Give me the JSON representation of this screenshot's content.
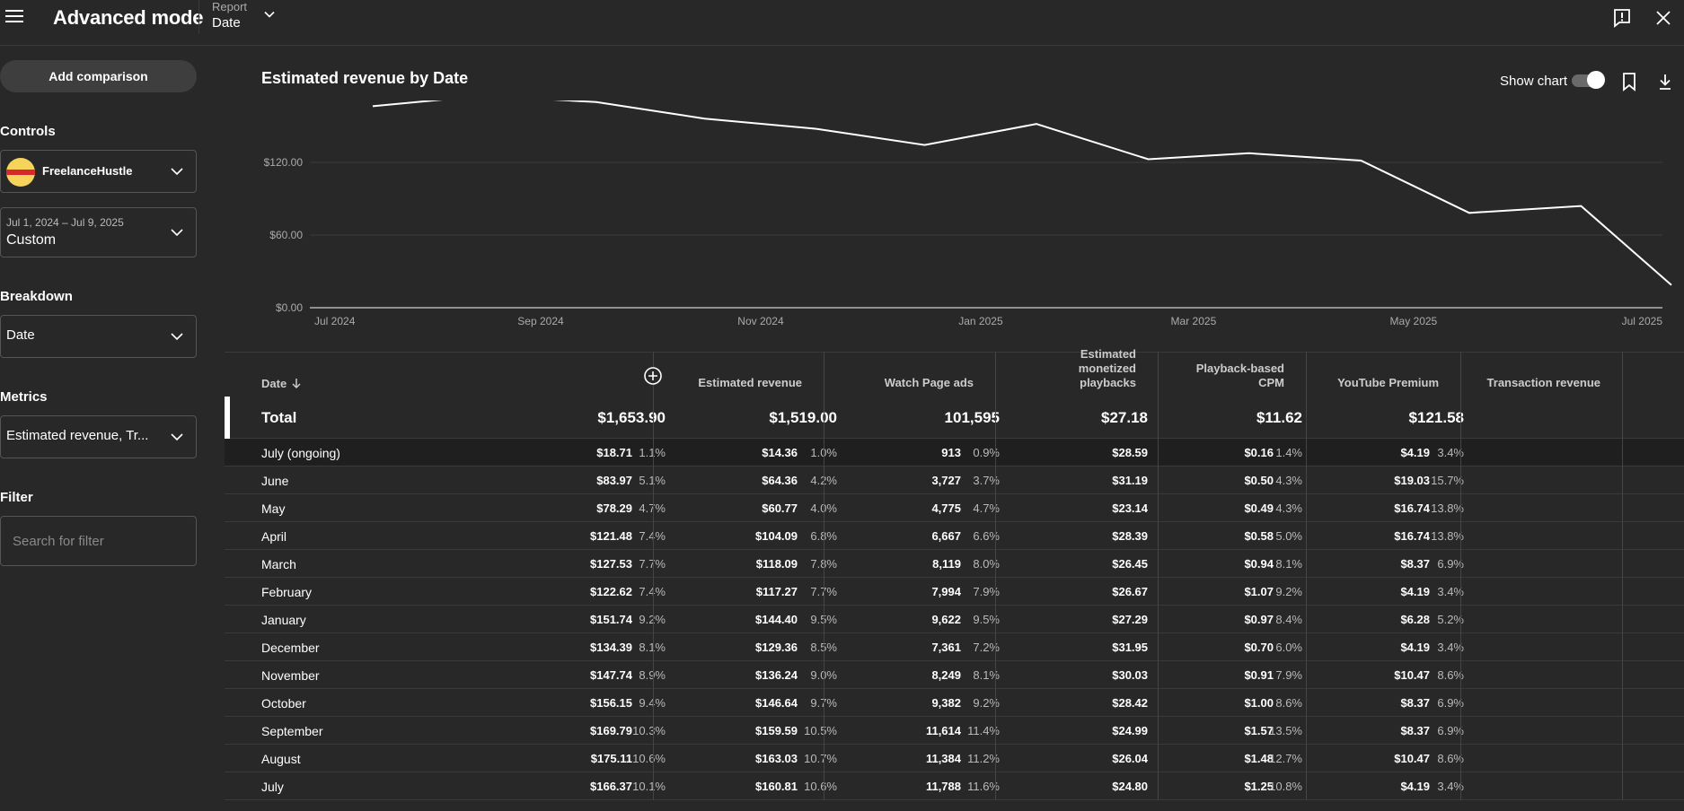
{
  "header": {
    "title": "Advanced mode",
    "report_label": "Report",
    "report_value": "Date"
  },
  "sidebar": {
    "add_comparison": "Add comparison",
    "controls_heading": "Controls",
    "channel_name": "FreelanceHustle",
    "date_range": "Jul 1, 2024 – Jul 9, 2025",
    "date_range_mode": "Custom",
    "breakdown_heading": "Breakdown",
    "breakdown_value": "Date",
    "metrics_heading": "Metrics",
    "metrics_value": "Estimated revenue, Tr...",
    "filter_heading": "Filter",
    "filter_placeholder": "Search for filter"
  },
  "chart": {
    "title": "Estimated revenue by Date",
    "show_chart_label": "Show chart",
    "show_chart_on": true
  },
  "chart_data": {
    "type": "line",
    "title": "Estimated revenue by Date",
    "x": [
      "2024-07-01",
      "2024-08-01",
      "2024-09-01",
      "2024-10-01",
      "2024-11-01",
      "2024-12-01",
      "2025-01-01",
      "2025-02-01",
      "2025-03-01",
      "2025-04-01",
      "2025-05-01",
      "2025-06-01",
      "2025-07-09"
    ],
    "series": [
      {
        "values": [
          166.37,
          175.11,
          169.79,
          156.15,
          147.74,
          134.39,
          151.74,
          122.62,
          127.53,
          121.48,
          78.29,
          83.97,
          18.71
        ]
      }
    ],
    "xticks": [
      "Jul 2024",
      "Sep 2024",
      "Nov 2024",
      "Jan 2025",
      "Mar 2025",
      "May 2025",
      "Jul 2025"
    ],
    "yticks": [
      "$0.00",
      "$60.00",
      "$120.00"
    ],
    "ylim": [
      0,
      180
    ],
    "grid": true,
    "line_color": "#ffffff"
  },
  "table": {
    "headers": [
      "Date",
      "Estimated revenue",
      "Watch Page ads",
      "Estimated monetized playbacks",
      "Playback-based CPM",
      "YouTube Premium",
      "Transaction revenue"
    ],
    "total": {
      "label": "Total",
      "values": [
        "$1,653.90",
        "$1,519.00",
        "101,595",
        "$27.18",
        "$11.62",
        "$121.58"
      ]
    },
    "rows": [
      {
        "label": "July (ongoing)",
        "cells": [
          [
            "$18.71",
            "1.1%"
          ],
          [
            "$14.36",
            "1.0%"
          ],
          [
            "913",
            "0.9%"
          ],
          [
            "$28.59",
            ""
          ],
          [
            "$0.16",
            "1.4%"
          ],
          [
            "$4.19",
            "3.4%"
          ]
        ]
      },
      {
        "label": "June",
        "cells": [
          [
            "$83.97",
            "5.1%"
          ],
          [
            "$64.36",
            "4.2%"
          ],
          [
            "3,727",
            "3.7%"
          ],
          [
            "$31.19",
            ""
          ],
          [
            "$0.50",
            "4.3%"
          ],
          [
            "$19.03",
            "15.7%"
          ]
        ]
      },
      {
        "label": "May",
        "cells": [
          [
            "$78.29",
            "4.7%"
          ],
          [
            "$60.77",
            "4.0%"
          ],
          [
            "4,775",
            "4.7%"
          ],
          [
            "$23.14",
            ""
          ],
          [
            "$0.49",
            "4.3%"
          ],
          [
            "$16.74",
            "13.8%"
          ]
        ]
      },
      {
        "label": "April",
        "cells": [
          [
            "$121.48",
            "7.4%"
          ],
          [
            "$104.09",
            "6.8%"
          ],
          [
            "6,667",
            "6.6%"
          ],
          [
            "$28.39",
            ""
          ],
          [
            "$0.58",
            "5.0%"
          ],
          [
            "$16.74",
            "13.8%"
          ]
        ]
      },
      {
        "label": "March",
        "cells": [
          [
            "$127.53",
            "7.7%"
          ],
          [
            "$118.09",
            "7.8%"
          ],
          [
            "8,119",
            "8.0%"
          ],
          [
            "$26.45",
            ""
          ],
          [
            "$0.94",
            "8.1%"
          ],
          [
            "$8.37",
            "6.9%"
          ]
        ]
      },
      {
        "label": "February",
        "cells": [
          [
            "$122.62",
            "7.4%"
          ],
          [
            "$117.27",
            "7.7%"
          ],
          [
            "7,994",
            "7.9%"
          ],
          [
            "$26.67",
            ""
          ],
          [
            "$1.07",
            "9.2%"
          ],
          [
            "$4.19",
            "3.4%"
          ]
        ]
      },
      {
        "label": "January",
        "cells": [
          [
            "$151.74",
            "9.2%"
          ],
          [
            "$144.40",
            "9.5%"
          ],
          [
            "9,622",
            "9.5%"
          ],
          [
            "$27.29",
            ""
          ],
          [
            "$0.97",
            "8.4%"
          ],
          [
            "$6.28",
            "5.2%"
          ]
        ]
      },
      {
        "label": "December",
        "cells": [
          [
            "$134.39",
            "8.1%"
          ],
          [
            "$129.36",
            "8.5%"
          ],
          [
            "7,361",
            "7.2%"
          ],
          [
            "$31.95",
            ""
          ],
          [
            "$0.70",
            "6.0%"
          ],
          [
            "$4.19",
            "3.4%"
          ]
        ]
      },
      {
        "label": "November",
        "cells": [
          [
            "$147.74",
            "8.9%"
          ],
          [
            "$136.24",
            "9.0%"
          ],
          [
            "8,249",
            "8.1%"
          ],
          [
            "$30.03",
            ""
          ],
          [
            "$0.91",
            "7.9%"
          ],
          [
            "$10.47",
            "8.6%"
          ]
        ]
      },
      {
        "label": "October",
        "cells": [
          [
            "$156.15",
            "9.4%"
          ],
          [
            "$146.64",
            "9.7%"
          ],
          [
            "9,382",
            "9.2%"
          ],
          [
            "$28.42",
            ""
          ],
          [
            "$1.00",
            "8.6%"
          ],
          [
            "$8.37",
            "6.9%"
          ]
        ]
      },
      {
        "label": "September",
        "cells": [
          [
            "$169.79",
            "10.3%"
          ],
          [
            "$159.59",
            "10.5%"
          ],
          [
            "11,614",
            "11.4%"
          ],
          [
            "$24.99",
            ""
          ],
          [
            "$1.57",
            "13.5%"
          ],
          [
            "$8.37",
            "6.9%"
          ]
        ]
      },
      {
        "label": "August",
        "cells": [
          [
            "$175.11",
            "10.6%"
          ],
          [
            "$163.03",
            "10.7%"
          ],
          [
            "11,384",
            "11.2%"
          ],
          [
            "$26.04",
            ""
          ],
          [
            "$1.48",
            "12.7%"
          ],
          [
            "$10.47",
            "8.6%"
          ]
        ]
      },
      {
        "label": "July",
        "cells": [
          [
            "$166.37",
            "10.1%"
          ],
          [
            "$160.81",
            "10.6%"
          ],
          [
            "11,788",
            "11.6%"
          ],
          [
            "$24.80",
            ""
          ],
          [
            "$1.25",
            "10.8%"
          ],
          [
            "$4.19",
            "3.4%"
          ]
        ]
      }
    ]
  },
  "icons": {
    "menu": "hamburger-menu-icon",
    "feedback": "feedback-icon",
    "close": "close-icon",
    "bookmark": "bookmark-icon",
    "download": "download-icon",
    "add_column": "add-circle-icon"
  }
}
